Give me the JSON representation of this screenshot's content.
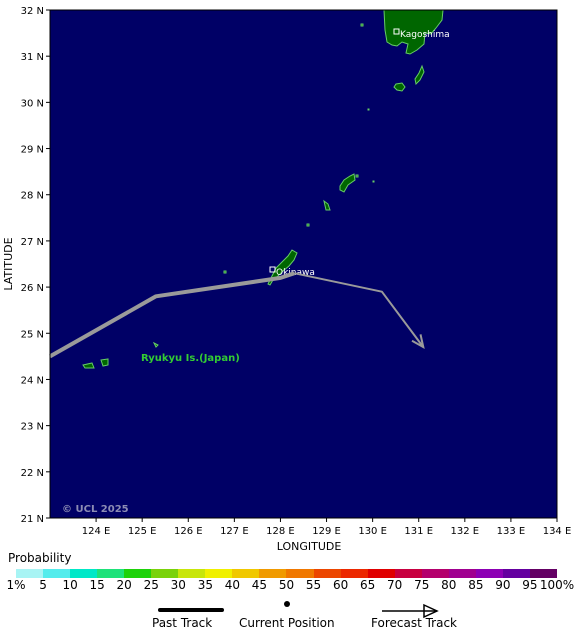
{
  "map": {
    "axes": {
      "xlabel": "LONGITUDE",
      "ylabel": "LATITUDE",
      "x_ticks": [
        "124 E",
        "125 E",
        "126 E",
        "127 E",
        "128 E",
        "129 E",
        "130 E",
        "131 E",
        "132 E",
        "133 E",
        "134 E"
      ],
      "y_ticks": [
        "32 N",
        "31 N",
        "30 N",
        "29 N",
        "28 N",
        "27 N",
        "26 N",
        "25 N",
        "24 N",
        "23 N",
        "22 N",
        "21 N"
      ]
    },
    "labels": {
      "kagoshima": "Kagoshima",
      "okinawa": "Okinawa",
      "region": "Ryukyu Is.(Japan)",
      "copyright": "© UCL 2025"
    },
    "colors": {
      "ocean": "#000066",
      "land": "#006600",
      "coast": "#66cc66",
      "track": "#9a9a9a"
    },
    "past_track": [
      {
        "lon": 123.0,
        "lat": 24.5
      },
      {
        "lon": 125.3,
        "lat": 25.8
      },
      {
        "lon": 128.0,
        "lat": 26.2
      },
      {
        "lon": 128.3,
        "lat": 26.3
      }
    ],
    "current_position": {
      "lon": 128.3,
      "lat": 26.3
    },
    "forecast_track": [
      {
        "lon": 128.3,
        "lat": 26.3
      },
      {
        "lon": 130.2,
        "lat": 25.9
      },
      {
        "lon": 131.1,
        "lat": 24.7
      }
    ]
  },
  "legend": {
    "probability_title": "Probability",
    "probability_labels": [
      "1%",
      "5",
      "10",
      "15",
      "20",
      "25",
      "30",
      "35",
      "40",
      "45",
      "50",
      "55",
      "60",
      "65",
      "70",
      "75",
      "80",
      "85",
      "90",
      "95",
      "100%"
    ],
    "probability_colors": [
      "#a8f4f4",
      "#54ecec",
      "#00e8c8",
      "#1ee27a",
      "#1ed20a",
      "#7ad20a",
      "#c8e60a",
      "#f0f000",
      "#f0c800",
      "#f09a00",
      "#f07800",
      "#ec4600",
      "#ec2800",
      "#e00000",
      "#c80040",
      "#b4006c",
      "#a00090",
      "#8c00b4",
      "#6400a0",
      "#640064"
    ],
    "past_track_label": "Past Track",
    "current_position_label": "Current Position",
    "forecast_track_label": "Forecast Track"
  }
}
